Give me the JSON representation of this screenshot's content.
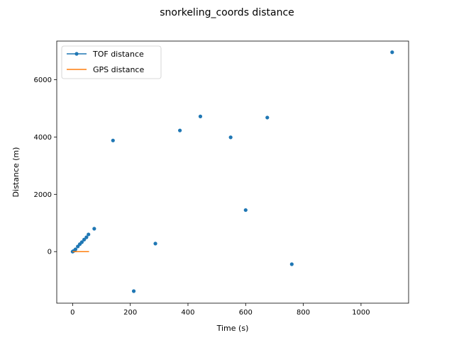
{
  "chart_data": {
    "type": "scatter",
    "title": "snorkeling_coords distance",
    "xlabel": "Time (s)",
    "ylabel": "Distance (m)",
    "xlim": [
      -55,
      1165
    ],
    "ylim": [
      -1800,
      7350
    ],
    "xticks": [
      0,
      200,
      400,
      600,
      800,
      1000
    ],
    "yticks": [
      0,
      2000,
      4000,
      6000
    ],
    "grid": false,
    "legend": "upper-left",
    "series": [
      {
        "name": "TOF distance",
        "color": "#1f77b4",
        "marker": "dot",
        "line": false,
        "x": [
          0,
          3,
          10,
          18,
          25,
          32,
          40,
          48,
          55,
          75,
          140,
          212,
          287,
          372,
          443,
          548,
          600,
          675,
          760,
          1108
        ],
        "y": [
          0,
          20,
          80,
          180,
          260,
          330,
          420,
          500,
          600,
          800,
          3880,
          -1380,
          280,
          4230,
          4720,
          3990,
          1450,
          4680,
          -440,
          6960
        ]
      },
      {
        "name": "GPS distance",
        "color": "#ff7f0e",
        "marker": "none",
        "line": true,
        "x": [
          0,
          10,
          20,
          30,
          40,
          50,
          57
        ],
        "y": [
          0,
          0,
          0,
          0,
          0,
          0,
          0
        ]
      }
    ]
  }
}
